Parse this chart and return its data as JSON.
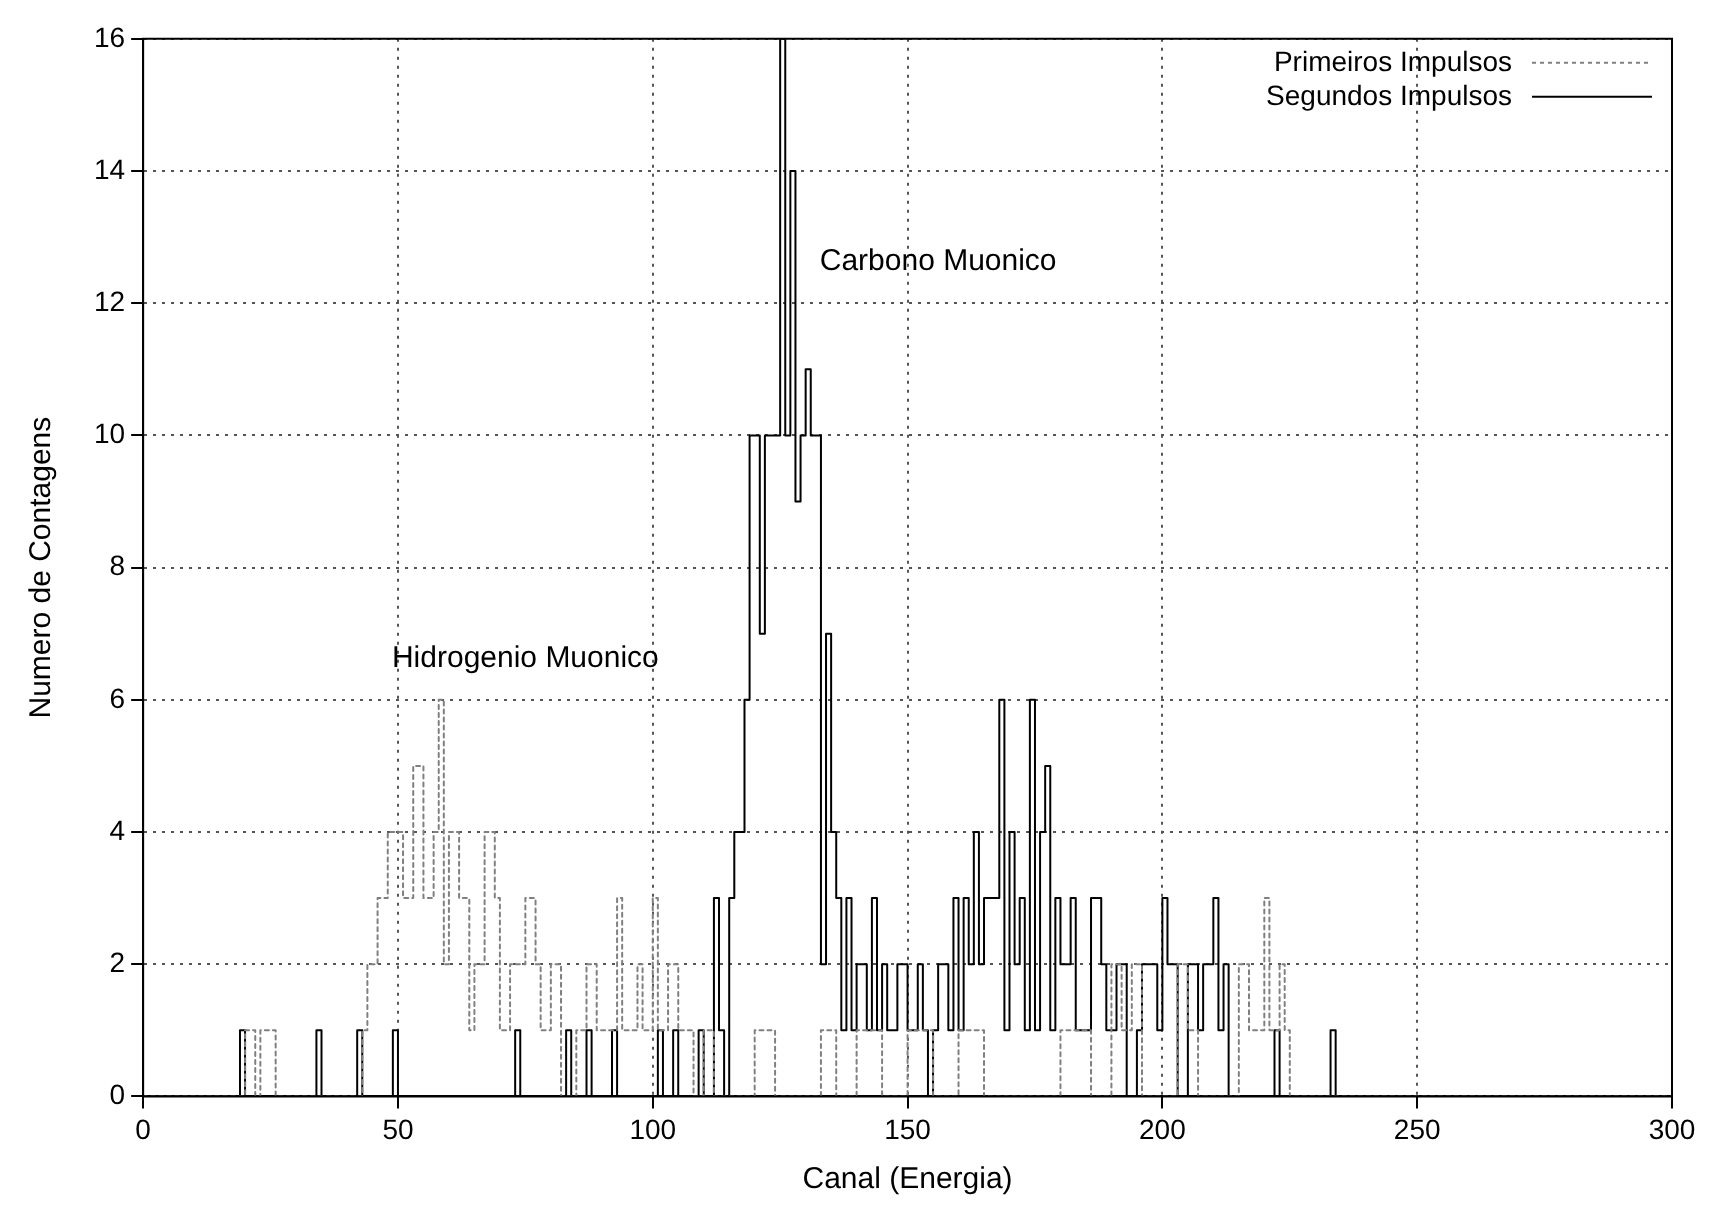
{
  "chart_data": {
    "type": "step",
    "xlabel": "Canal (Energia)",
    "ylabel": "Numero de Contagens",
    "xlim": [
      0,
      300
    ],
    "xticks": [
      0,
      50,
      100,
      150,
      200,
      250,
      300
    ],
    "ylim": [
      0,
      16
    ],
    "yticks": [
      0,
      2,
      4,
      6,
      8,
      10,
      12,
      14,
      16
    ],
    "grid": true,
    "legend": "top right",
    "marker": "none",
    "annotations": [
      "Hidrogenio Muonico",
      "Carbono Muonico"
    ],
    "series": [
      {
        "name": "Primeiros Impulsos",
        "color": "#808080",
        "line_style": "dotted",
        "x": [
          0,
          20,
          22,
          23,
          26,
          43,
          44,
          46,
          48,
          51,
          53,
          55,
          57,
          58,
          59,
          60,
          62,
          64,
          65,
          67,
          69,
          70,
          72,
          75,
          77,
          78,
          80,
          82,
          85,
          87,
          89,
          93,
          94,
          97,
          98,
          100,
          101,
          103,
          105,
          108,
          110,
          112,
          120,
          124,
          133,
          136,
          140,
          145,
          150,
          155,
          160,
          165,
          180,
          186,
          190,
          192,
          194,
          196,
          203,
          205,
          207,
          215,
          217,
          220,
          221,
          223,
          224,
          225,
          300
        ],
        "values": [
          0,
          1,
          0,
          1,
          0,
          1,
          2,
          3,
          4,
          3,
          5,
          3,
          4,
          6,
          2,
          4,
          3,
          1,
          2,
          4,
          3,
          1,
          2,
          3,
          2,
          1,
          2,
          0,
          1,
          2,
          1,
          3,
          1,
          2,
          1,
          3,
          1,
          2,
          1,
          0,
          1,
          0,
          1,
          0,
          1,
          0,
          1,
          0,
          1,
          0,
          1,
          0,
          1,
          0,
          2,
          1,
          2,
          0,
          2,
          1,
          0,
          2,
          1,
          3,
          1,
          2,
          1,
          0,
          0
        ]
      },
      {
        "name": "Segundos Impulsos",
        "color": "#000000",
        "line_style": "solid",
        "x": [
          0,
          19,
          20,
          34,
          35,
          42,
          43,
          49,
          50,
          73,
          74,
          83,
          84,
          87,
          88,
          92,
          93,
          101,
          102,
          104,
          105,
          109,
          110,
          112,
          113,
          114,
          115,
          116,
          118,
          119,
          121,
          122,
          125,
          126,
          127,
          128,
          129,
          130,
          131,
          133,
          134,
          135,
          136,
          137,
          138,
          139,
          140,
          142,
          143,
          144,
          145,
          146,
          148,
          150,
          152,
          153,
          154,
          155,
          156,
          158,
          159,
          160,
          161,
          162,
          163,
          164,
          165,
          168,
          169,
          170,
          171,
          172,
          173,
          174,
          175,
          176,
          177,
          178,
          179,
          180,
          182,
          183,
          186,
          188,
          189,
          191,
          193,
          195,
          196,
          199,
          200,
          201,
          203,
          205,
          207,
          208,
          210,
          211,
          212,
          213,
          222,
          223,
          233,
          234,
          300
        ],
        "values": [
          0,
          1,
          0,
          1,
          0,
          1,
          0,
          1,
          0,
          1,
          0,
          1,
          0,
          1,
          0,
          1,
          0,
          1,
          0,
          1,
          0,
          1,
          0,
          3,
          1,
          0,
          3,
          4,
          6,
          10,
          7,
          10,
          16,
          10,
          14,
          9,
          10,
          11,
          10,
          2,
          7,
          4,
          3,
          1,
          3,
          1,
          2,
          1,
          3,
          1,
          2,
          1,
          2,
          1,
          2,
          1,
          0,
          1,
          2,
          1,
          3,
          1,
          3,
          2,
          4,
          2,
          3,
          6,
          1,
          4,
          2,
          3,
          1,
          6,
          1,
          4,
          5,
          1,
          3,
          2,
          3,
          1,
          3,
          2,
          1,
          2,
          0,
          1,
          2,
          1,
          3,
          2,
          0,
          2,
          1,
          2,
          3,
          1,
          2,
          0,
          1,
          0,
          1,
          0,
          0
        ]
      }
    ]
  }
}
